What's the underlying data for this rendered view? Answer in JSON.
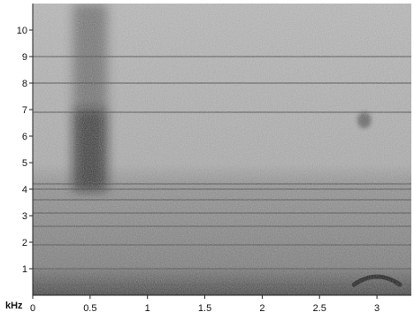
{
  "chart_data": {
    "type": "heatmap",
    "subtype": "spectrogram",
    "title": "",
    "xlabel": "",
    "ylabel": "",
    "x_unit": "",
    "y_unit": "kHz",
    "xlim": [
      0,
      3.3
    ],
    "ylim": [
      0,
      11
    ],
    "x_ticks": [
      "0",
      "0.5",
      "1",
      "1.5",
      "2",
      "2.5",
      "3"
    ],
    "y_ticks": [
      "1",
      "2",
      "3",
      "4",
      "5",
      "6",
      "7",
      "8",
      "9",
      "10"
    ],
    "colormap": "grayscale, darker = higher energy",
    "background_noise": "broadband grainy noise, denser below about 4 kHz",
    "horizontal_bands_khz": [
      0.4,
      1.0,
      1.9,
      2.6,
      3.1,
      3.6,
      4.0,
      4.2,
      6.9,
      8.0,
      9.0
    ],
    "sound_events": [
      {
        "label": "broadband burst",
        "x_start": 0.35,
        "x_end": 0.65,
        "y_low": 3.9,
        "y_high": 11,
        "core_y_low": 4.0,
        "core_y_high": 7.0,
        "intensity": 0.85
      },
      {
        "label": "short tonal note",
        "x_start": 2.83,
        "x_end": 2.95,
        "y_low": 6.3,
        "y_high": 6.9,
        "intensity": 0.6
      },
      {
        "label": "low arched call",
        "x_start": 2.8,
        "x_end": 3.2,
        "y_low": 0.4,
        "y_high": 0.8,
        "intensity": 0.95
      }
    ],
    "grid": false,
    "legend": "none"
  }
}
